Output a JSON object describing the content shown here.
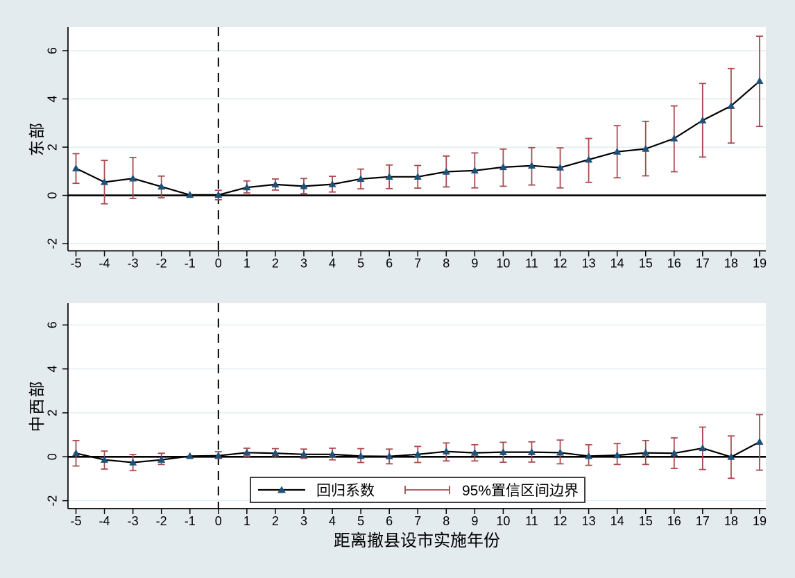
{
  "figure": {
    "background": "#e4ebef",
    "plot_background": "#ffffff",
    "gridline_color": "#dfeaef",
    "axis_color": "#000000",
    "line_color": "#000000",
    "marker_color": "#1e527a",
    "ci_color": "#a84a50",
    "dashed_line_color": "#000000",
    "xlabel": "距离撤县设市实施年份",
    "legend": {
      "coef_label": "回归系数",
      "ci_label": "95%置信区间边界"
    }
  },
  "chart_data": [
    {
      "type": "line",
      "panel": "east",
      "title": "东部",
      "ylabel": "东部",
      "x": [
        -5,
        -4,
        -3,
        -2,
        -1,
        0,
        1,
        2,
        3,
        4,
        5,
        6,
        7,
        8,
        9,
        10,
        11,
        12,
        13,
        14,
        15,
        16,
        17,
        18,
        19
      ],
      "series": [
        {
          "name": "回归系数",
          "values": [
            1.12,
            0.55,
            0.7,
            0.36,
            0.02,
            0.02,
            0.33,
            0.45,
            0.38,
            0.46,
            0.68,
            0.77,
            0.77,
            0.98,
            1.03,
            1.17,
            1.23,
            1.15,
            1.48,
            1.81,
            1.93,
            2.36,
            3.11,
            3.71,
            4.74
          ]
        }
      ],
      "ci_low": [
        0.5,
        -0.35,
        -0.13,
        -0.1,
        null,
        -0.18,
        0.1,
        0.22,
        0.07,
        0.14,
        0.27,
        0.28,
        0.3,
        0.35,
        0.31,
        0.38,
        0.43,
        0.31,
        0.54,
        0.73,
        0.81,
        0.98,
        1.59,
        2.17,
        2.86
      ],
      "ci_high": [
        1.73,
        1.45,
        1.57,
        0.8,
        null,
        0.21,
        0.6,
        0.68,
        0.7,
        0.79,
        1.09,
        1.26,
        1.24,
        1.63,
        1.76,
        1.92,
        1.98,
        1.97,
        2.36,
        2.89,
        3.07,
        3.71,
        4.64,
        5.26,
        6.6
      ],
      "yticks": [
        -2,
        0,
        2,
        4,
        6
      ],
      "xticks": [
        -5,
        -4,
        -3,
        -2,
        -1,
        0,
        1,
        2,
        3,
        4,
        5,
        6,
        7,
        8,
        9,
        10,
        11,
        12,
        13,
        14,
        15,
        16,
        17,
        18,
        19
      ],
      "ylim": [
        -2.3,
        6.98
      ],
      "xlim": [
        -5.28,
        19.22
      ],
      "ref_vline_x": 0,
      "ref_hline_y": 0,
      "grid": true
    },
    {
      "type": "line",
      "panel": "central-west",
      "title": "中西部",
      "ylabel": "中西部",
      "x": [
        -5,
        -4,
        -3,
        -2,
        -1,
        0,
        1,
        2,
        3,
        4,
        5,
        6,
        7,
        8,
        9,
        10,
        11,
        12,
        13,
        14,
        15,
        16,
        17,
        18,
        19
      ],
      "series": [
        {
          "name": "回归系数",
          "values": [
            0.16,
            -0.14,
            -0.26,
            -0.14,
            0.03,
            0.05,
            0.19,
            0.16,
            0.11,
            0.11,
            0.03,
            0.02,
            0.11,
            0.24,
            0.18,
            0.21,
            0.21,
            0.19,
            0.03,
            0.07,
            0.18,
            0.16,
            0.39,
            -0.01,
            0.68
          ]
        }
      ],
      "ci_low": [
        -0.42,
        -0.56,
        -0.63,
        -0.35,
        null,
        -0.08,
        0.02,
        -0.03,
        -0.07,
        -0.14,
        -0.26,
        -0.32,
        -0.26,
        -0.19,
        -0.19,
        -0.25,
        -0.24,
        -0.32,
        -0.39,
        -0.35,
        -0.35,
        -0.53,
        -0.58,
        -0.98,
        -0.61
      ],
      "ci_high": [
        0.74,
        0.26,
        0.1,
        0.16,
        null,
        0.23,
        0.39,
        0.37,
        0.35,
        0.39,
        0.37,
        0.35,
        0.47,
        0.63,
        0.55,
        0.66,
        0.68,
        0.76,
        0.55,
        0.6,
        0.74,
        0.86,
        1.35,
        0.95,
        1.92
      ],
      "yticks": [
        -2,
        0,
        2,
        4,
        6
      ],
      "xticks": [
        -5,
        -4,
        -3,
        -2,
        -1,
        0,
        1,
        2,
        3,
        4,
        5,
        6,
        7,
        8,
        9,
        10,
        11,
        12,
        13,
        14,
        15,
        16,
        17,
        18,
        19
      ],
      "ylim": [
        -2.36,
        6.99
      ],
      "xlim": [
        -5.28,
        19.22
      ],
      "ref_vline_x": 0,
      "ref_hline_y": 0,
      "grid": true,
      "legend_position": "bottom-center-inside"
    }
  ]
}
